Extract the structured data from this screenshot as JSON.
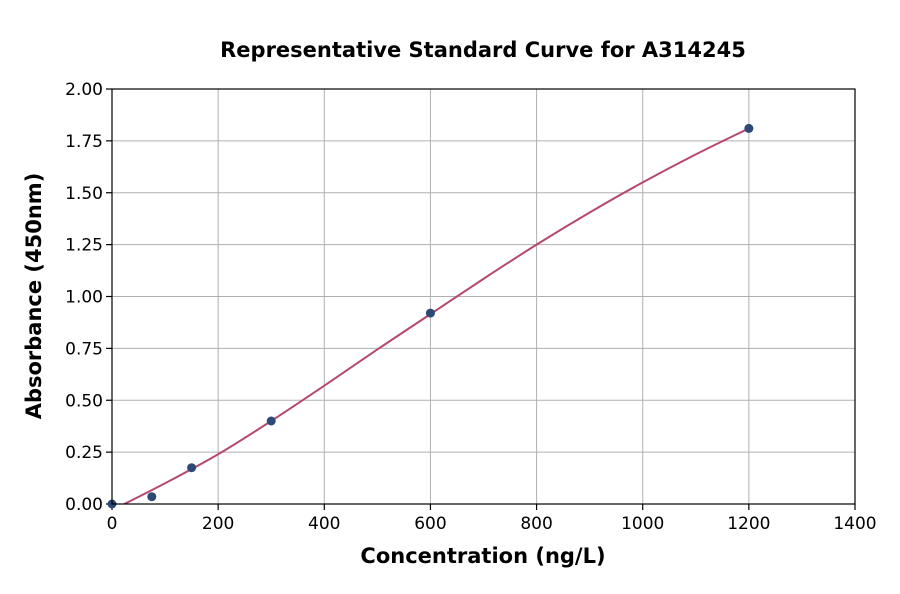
{
  "chart_data": {
    "type": "scatter",
    "title": "Representative Standard Curve for A314245",
    "xlabel": "Concentration (ng/L)",
    "ylabel": "Absorbance (450nm)",
    "xlim": [
      0,
      1400
    ],
    "ylim": [
      0,
      2.0
    ],
    "x_ticks": [
      0,
      200,
      400,
      600,
      800,
      1000,
      1200,
      1400
    ],
    "x_tick_labels": [
      "0",
      "200",
      "400",
      "600",
      "800",
      "1000",
      "1200",
      "1400"
    ],
    "y_ticks": [
      0,
      0.25,
      0.5,
      0.75,
      1.0,
      1.25,
      1.5,
      1.75,
      2.0
    ],
    "y_tick_labels": [
      "0.00",
      "0.25",
      "0.50",
      "0.75",
      "1.00",
      "1.25",
      "1.50",
      "1.75",
      "2.00"
    ],
    "grid": true,
    "series": [
      {
        "kind": "points",
        "x": [
          0,
          75,
          150,
          300,
          600,
          1200
        ],
        "y": [
          0.0,
          0.035,
          0.175,
          0.4,
          0.92,
          1.81
        ],
        "color": "#2b4a78"
      },
      {
        "kind": "fitted-curve",
        "x": [
          0,
          100,
          200,
          300,
          400,
          500,
          600,
          700,
          800,
          900,
          1000,
          1100,
          1200
        ],
        "y": [
          -0.03,
          0.1,
          0.24,
          0.4,
          0.57,
          0.745,
          0.915,
          1.085,
          1.25,
          1.405,
          1.55,
          1.685,
          1.81
        ],
        "color": "#b5496e"
      }
    ]
  }
}
